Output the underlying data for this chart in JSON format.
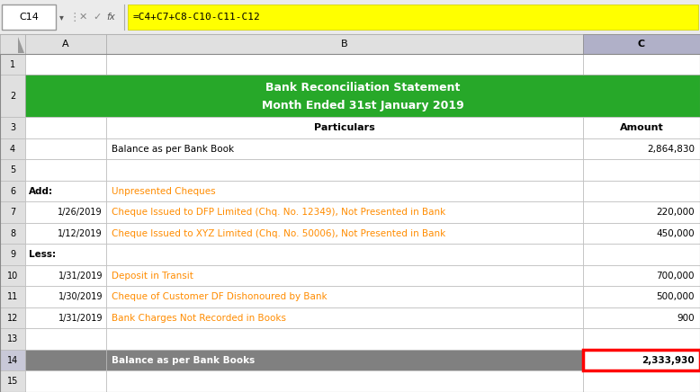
{
  "formula_bar_cell": "C14",
  "formula_bar_formula": "=C4+C7+C8-C10-C11-C12",
  "title_line1": "Bank Reconciliation Statement",
  "title_line2": "Month Ended 31st January 2019",
  "title_bg": "#27A829",
  "formula_bg": "#FFFF00",
  "header_bg": "#D8D8D8",
  "col_c_header_bg": "#C0C0D0",
  "row14_bg": "#808080",
  "row14_c_bg": "#FFFFFF",
  "red_border": "#FF0000",
  "rows": [
    {
      "num": 1,
      "a": "",
      "b": "",
      "c": "",
      "b_color": "#000000",
      "b_bold": false,
      "a_bold": false,
      "title": false,
      "gray": false
    },
    {
      "num": 2,
      "a": "",
      "b": "",
      "c": "",
      "b_color": "#000000",
      "b_bold": false,
      "a_bold": false,
      "title": true,
      "gray": false
    },
    {
      "num": 3,
      "a": "",
      "b": "Particulars",
      "c": "Amount",
      "b_color": "#000000",
      "b_bold": true,
      "a_bold": false,
      "title": false,
      "gray": false
    },
    {
      "num": 4,
      "a": "",
      "b": "Balance as per Bank Book",
      "c": "2,864,830",
      "b_color": "#000000",
      "b_bold": false,
      "a_bold": false,
      "title": false,
      "gray": false
    },
    {
      "num": 5,
      "a": "",
      "b": "",
      "c": "",
      "b_color": "#000000",
      "b_bold": false,
      "a_bold": false,
      "title": false,
      "gray": false
    },
    {
      "num": 6,
      "a": "Add:",
      "b": "Unpresented Cheques",
      "c": "",
      "b_color": "#FF8C00",
      "b_bold": false,
      "a_bold": true,
      "title": false,
      "gray": false
    },
    {
      "num": 7,
      "a": "1/26/2019",
      "b": "Cheque Issued to DFP Limited (Chq. No. 12349), Not Presented in Bank",
      "c": "220,000",
      "b_color": "#FF8C00",
      "b_bold": false,
      "a_bold": false,
      "title": false,
      "gray": false
    },
    {
      "num": 8,
      "a": "1/12/2019",
      "b": "Cheque Issued to XYZ Limited (Chq. No. 50006), Not Presented in Bank",
      "c": "450,000",
      "b_color": "#FF8C00",
      "b_bold": false,
      "a_bold": false,
      "title": false,
      "gray": false
    },
    {
      "num": 9,
      "a": "Less:",
      "b": "",
      "c": "",
      "b_color": "#000000",
      "b_bold": false,
      "a_bold": true,
      "title": false,
      "gray": false
    },
    {
      "num": 10,
      "a": "1/31/2019",
      "b": "Deposit in Transit",
      "c": "700,000",
      "b_color": "#FF8C00",
      "b_bold": false,
      "a_bold": false,
      "title": false,
      "gray": false
    },
    {
      "num": 11,
      "a": "1/30/2019",
      "b": "Cheque of Customer DF Dishonoured by Bank",
      "c": "500,000",
      "b_color": "#FF8C00",
      "b_bold": false,
      "a_bold": false,
      "title": false,
      "gray": false
    },
    {
      "num": 12,
      "a": "1/31/2019",
      "b": "Bank Charges Not Recorded in Books",
      "c": "900",
      "b_color": "#FF8C00",
      "b_bold": false,
      "a_bold": false,
      "title": false,
      "gray": false
    },
    {
      "num": 13,
      "a": "",
      "b": "",
      "c": "",
      "b_color": "#000000",
      "b_bold": false,
      "a_bold": false,
      "title": false,
      "gray": false
    },
    {
      "num": 14,
      "a": "",
      "b": "Balance as per Bank Books",
      "c": "2,333,930",
      "b_color": "#FFFFFF",
      "b_bold": true,
      "a_bold": false,
      "title": false,
      "gray": true
    },
    {
      "num": 15,
      "a": "",
      "b": "",
      "c": "",
      "b_color": "#000000",
      "b_bold": false,
      "a_bold": false,
      "title": false,
      "gray": false
    }
  ]
}
